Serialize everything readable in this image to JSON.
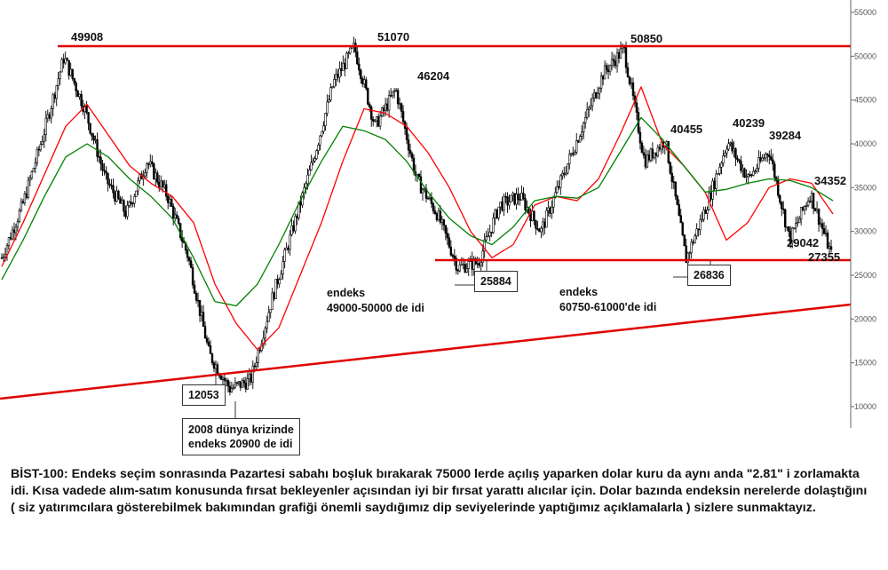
{
  "chart_data": {
    "type": "candlestick",
    "title": "",
    "ylim": [
      7000,
      56000
    ],
    "grid": false,
    "y_axis_position": "right",
    "y_ticks": [
      10000,
      15000,
      20000,
      25000,
      30000,
      35000,
      40000,
      45000,
      50000,
      55000
    ],
    "series": [
      {
        "name": "",
        "color": "#ff0000",
        "values": [
          26000,
          31000,
          36500,
          42000,
          44500,
          41000,
          37500,
          35500,
          34000,
          31000,
          24000,
          19500,
          16500,
          19000,
          25000,
          31000,
          38000,
          44000,
          43500,
          42000,
          39000,
          35000,
          30000,
          27000,
          28500,
          33000,
          34000,
          33500,
          36000,
          41000,
          46500,
          40000,
          37500,
          34500,
          29000,
          31000,
          35000,
          36000,
          35500,
          32000
        ]
      },
      {
        "name": "",
        "color": "#008000",
        "values": [
          24500,
          29000,
          34000,
          38500,
          40000,
          38500,
          36000,
          34000,
          31500,
          27000,
          22000,
          21500,
          24000,
          28500,
          33500,
          38000,
          42000,
          41500,
          40500,
          38000,
          34500,
          31500,
          29500,
          28500,
          30500,
          33500,
          34000,
          33800,
          35000,
          39000,
          43000,
          40500,
          37500,
          34500,
          34800,
          35500,
          36000,
          35800,
          35000,
          33500
        ]
      }
    ],
    "price": [
      27000,
      33000,
      41000,
      49908,
      44000,
      36000,
      32000,
      38000,
      34000,
      27000,
      16000,
      12053,
      13000,
      22000,
      30000,
      38000,
      47000,
      51070,
      42000,
      46204,
      36000,
      32000,
      25884,
      26500,
      33000,
      34000,
      30000,
      36000,
      42000,
      48000,
      50850,
      38000,
      40455,
      26836,
      33000,
      40239,
      36000,
      39284,
      29042,
      34352,
      27355
    ]
  },
  "annotations": {
    "peak_labels": [
      "49908",
      "51070",
      "46204",
      "50850",
      "40455",
      "40239",
      "39284",
      "34352",
      "29042",
      "27355"
    ],
    "box_12053": "12053",
    "box_25884": "25884",
    "box_26836": "26836",
    "note_2008_line1": "2008 dünya krizinde",
    "note_2008_line2": "endeks 20900 de idi",
    "note_a_line1": "endeks",
    "note_a_line2": "49000-50000 de idi",
    "note_b_line1": "endeks",
    "note_b_line2": "60750-61000'de idi"
  },
  "caption": "BİST-100: Endeks seçim sonrasında Pazartesi sabahı boşluk bırakarak 75000 lerde açılış yaparken dolar kuru da aynı anda \"2.81\" i zorlamakta idi. Kısa vadede alım-satım konusunda fırsat bekleyenler açısından iyi bir fırsat yarattı alıcılar için. Dolar bazında endeksin nerelerde dolaştığını ( siz yatırımcılara gösterebilmek bakımından grafiği önemli saydığımız dip seviyelerinde yaptığımız açıklamalarla ) sizlere sunmaktayız."
}
